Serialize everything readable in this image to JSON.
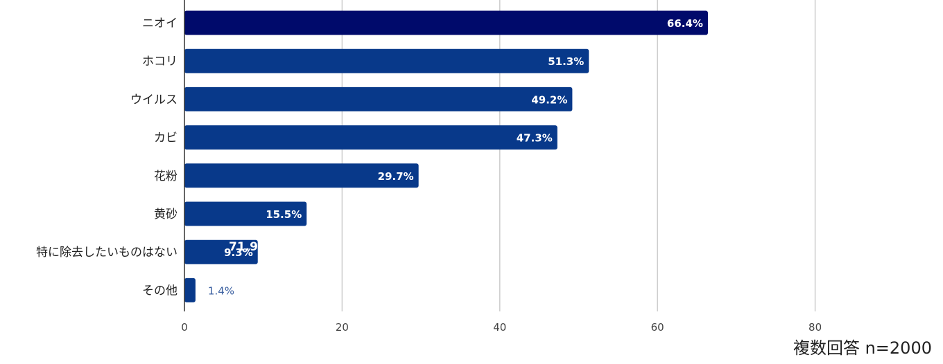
{
  "chart_data": {
    "type": "bar",
    "orientation": "horizontal",
    "categories": [
      "ニオイ",
      "ホコリ",
      "ウイルス",
      "カビ",
      "花粉",
      "黄砂",
      "特に除去したいものはない",
      "その他"
    ],
    "values": [
      66.4,
      51.3,
      49.2,
      47.3,
      29.7,
      15.5,
      9.3,
      1.4
    ],
    "value_labels": [
      "66.4%",
      "51.3%",
      "49.2%",
      "47.3%",
      "29.7%",
      "15.5%",
      "9.3%",
      "1.4%"
    ],
    "stray_label": "71.9",
    "xlim": [
      0,
      100
    ],
    "xticks": [
      0,
      20,
      40,
      60,
      80
    ],
    "tick_labels": [
      "0",
      "20",
      "40",
      "60",
      "80"
    ],
    "grid": true,
    "title": "",
    "xlabel": "",
    "ylabel": "",
    "highlight_color": "#000a6b",
    "bar_color": "#08398a",
    "grid_color": "#cccccc",
    "axis_color": "#333333"
  },
  "footnote": "複数回答 n=2000"
}
